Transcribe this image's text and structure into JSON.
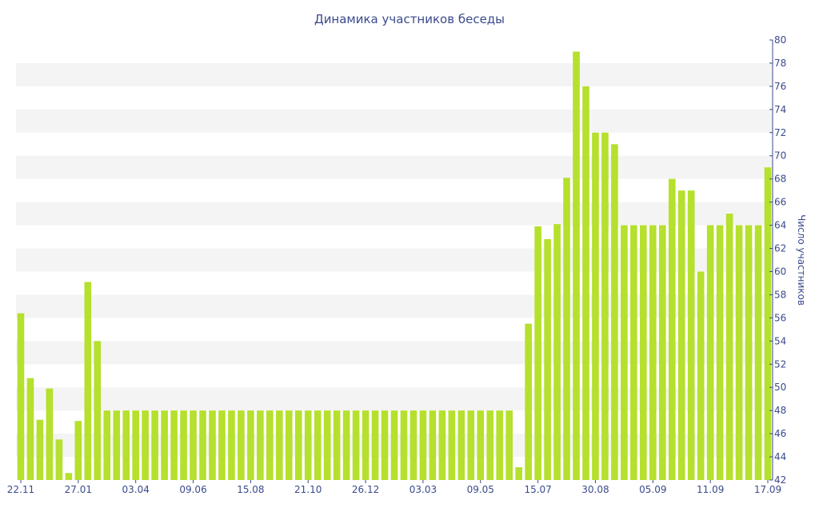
{
  "chart_data": {
    "type": "bar",
    "title": "Динамика участников беседы",
    "xlabel": "",
    "ylabel": "Число участников",
    "ylim": [
      42,
      80
    ],
    "y_axis_position": "right",
    "yticks": [
      42,
      44,
      46,
      48,
      50,
      52,
      54,
      56,
      58,
      60,
      62,
      64,
      66,
      68,
      70,
      72,
      74,
      76,
      78,
      80
    ],
    "bar_color": "#b5e02d",
    "band_color": "#f4f4f4",
    "text_color": "#3a4a8c",
    "x_tick_labels": [
      {
        "index": 0,
        "label": "22.11"
      },
      {
        "index": 6,
        "label": "27.01"
      },
      {
        "index": 12,
        "label": "03.04"
      },
      {
        "index": 18,
        "label": "09.06"
      },
      {
        "index": 24,
        "label": "15.08"
      },
      {
        "index": 30,
        "label": "21.10"
      },
      {
        "index": 36,
        "label": "26.12"
      },
      {
        "index": 42,
        "label": "03.03"
      },
      {
        "index": 48,
        "label": "09.05"
      },
      {
        "index": 54,
        "label": "15.07"
      },
      {
        "index": 60,
        "label": "30.08"
      },
      {
        "index": 66,
        "label": "05.09"
      },
      {
        "index": 72,
        "label": "11.09"
      },
      {
        "index": 78,
        "label": "17.09"
      }
    ],
    "values": [
      56.4,
      50.8,
      47.2,
      49.9,
      45.5,
      42.6,
      47.1,
      59.1,
      54.0,
      48,
      48,
      48,
      48,
      48,
      48,
      48,
      48,
      48,
      48,
      48,
      48,
      48,
      48,
      48,
      48,
      48,
      48,
      48,
      48,
      48,
      48,
      48,
      48,
      48,
      48,
      48,
      48,
      48,
      48,
      48,
      48,
      48,
      48,
      48,
      48,
      48,
      48,
      48,
      48,
      48,
      48,
      48,
      43.1,
      55.5,
      63.9,
      62.8,
      64.1,
      68.1,
      79.0,
      76.0,
      72.0,
      72.0,
      71.0,
      64.0,
      64.0,
      64.0,
      64.0,
      64.0,
      68.0,
      67.0,
      67.0,
      60.0,
      64.0,
      64.0,
      65.0,
      64.0,
      64.0,
      64.0,
      69.0
    ]
  }
}
